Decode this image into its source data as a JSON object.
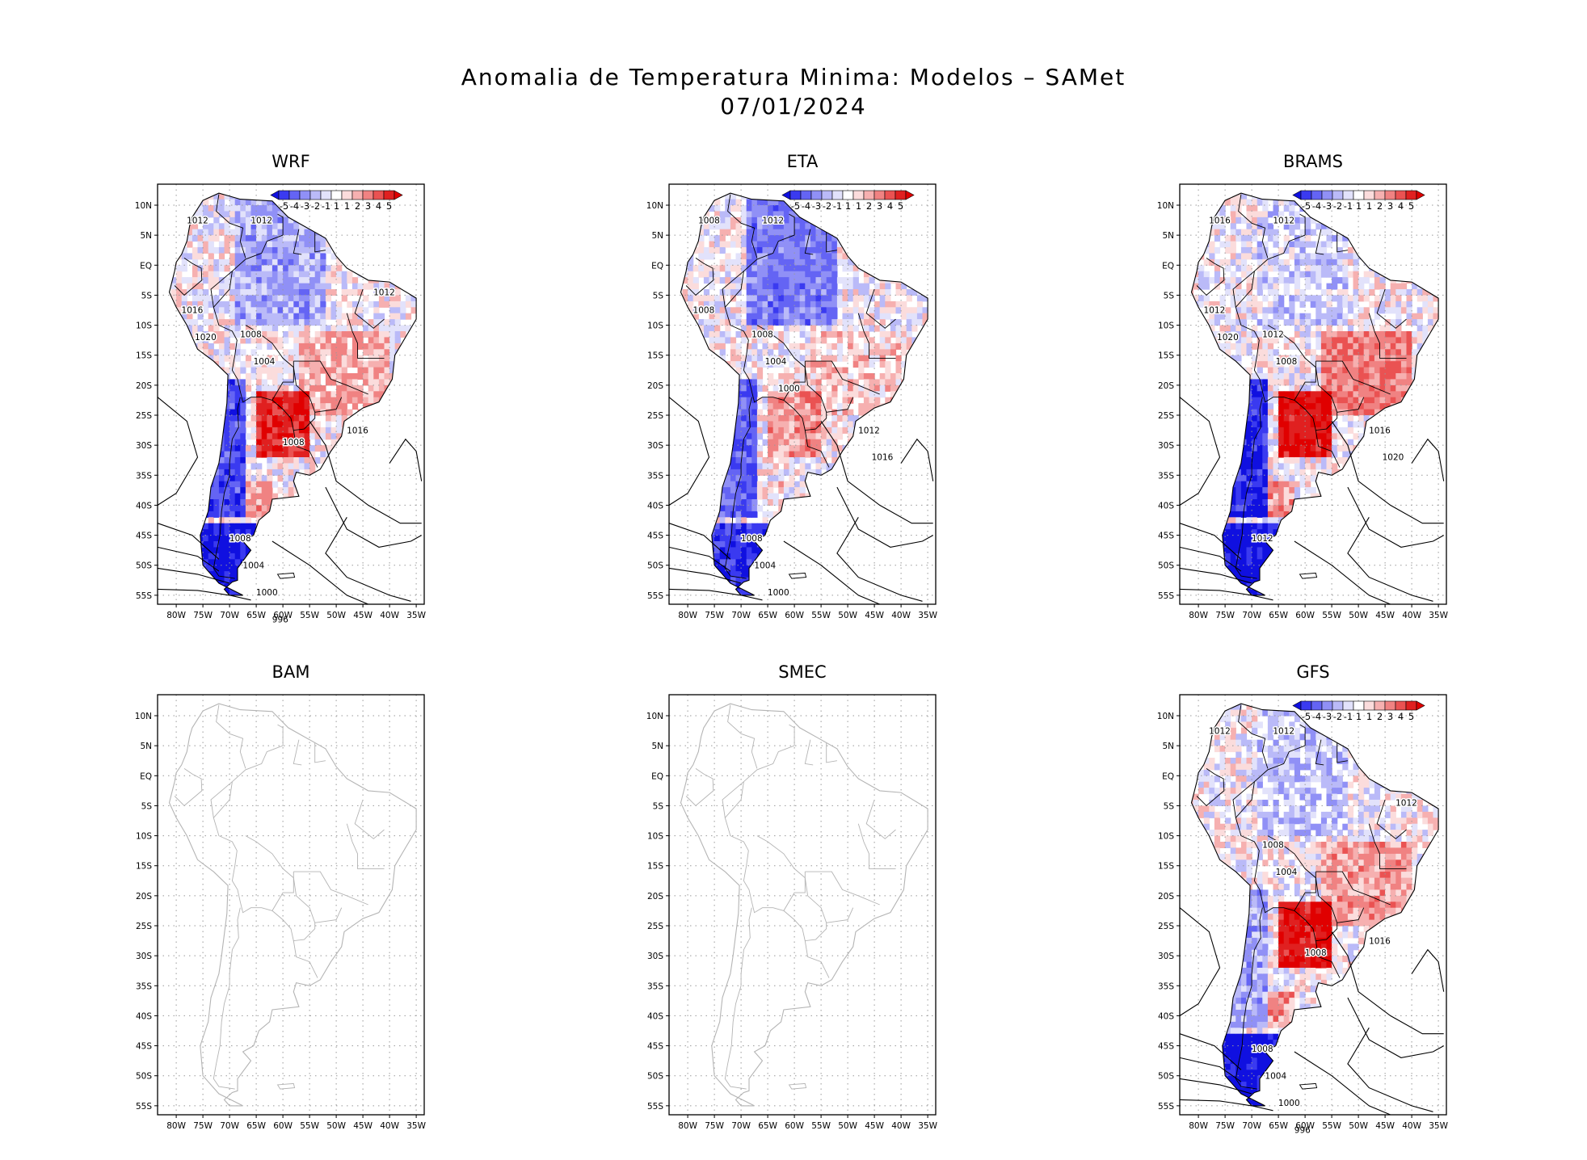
{
  "figure": {
    "title_line1": "Anomalia de Temperatura Minima: Modelos – SAMet",
    "title_line2": "07/01/2024"
  },
  "axes": {
    "lat_labels": [
      "10N",
      "5N",
      "EQ",
      "5S",
      "10S",
      "15S",
      "20S",
      "25S",
      "30S",
      "35S",
      "40S",
      "45S",
      "50S",
      "55S"
    ],
    "lon_labels": [
      "80W",
      "75W",
      "70W",
      "65W",
      "60W",
      "55W",
      "50W",
      "45W",
      "40W",
      "35W"
    ]
  },
  "colorbar": {
    "labels": [
      "-5",
      "-4",
      "-3",
      "-2",
      "-1",
      "1",
      "1",
      "2",
      "3",
      "4",
      "5"
    ],
    "colors": [
      "#1010e0",
      "#3a3af0",
      "#6464f4",
      "#9090f6",
      "#babaf8",
      "#e2e2fb",
      "#ffffff",
      "#fbdcdc",
      "#f6b0b0",
      "#f08282",
      "#ea5252",
      "#e02020",
      "#e00000"
    ]
  },
  "panels": [
    {
      "id": "wrf",
      "name": "WRF",
      "has_data": true,
      "anomaly": {
        "south_cold": 0.8,
        "andes_cold": 0.7,
        "north_cold": 0.5,
        "central_warm": 0.4,
        "paraguay_warm": 0.8
      },
      "isobars": [
        {
          "label": "1012",
          "pos": "NW"
        },
        {
          "label": "1012",
          "pos": "N"
        },
        {
          "label": "1016",
          "pos": "W"
        },
        {
          "label": "1012",
          "pos": "NE"
        },
        {
          "label": "1020",
          "pos": "W"
        },
        {
          "label": "1008",
          "pos": "C"
        },
        {
          "label": "1004",
          "pos": "C"
        },
        {
          "label": "1008",
          "pos": "SE"
        },
        {
          "label": "1016",
          "pos": "E"
        },
        {
          "label": "1008",
          "pos": "S"
        },
        {
          "label": "1004",
          "pos": "S"
        },
        {
          "label": "1000",
          "pos": "S"
        },
        {
          "label": "996",
          "pos": "S"
        }
      ]
    },
    {
      "id": "eta",
      "name": "ETA",
      "has_data": true,
      "anomaly": {
        "south_cold": 0.7,
        "andes_cold": 0.6,
        "north_cold": 0.8,
        "central_warm": 0.2,
        "paraguay_warm": 0.3
      },
      "isobars": [
        {
          "label": "1008",
          "pos": "NW"
        },
        {
          "label": "1012",
          "pos": "N"
        },
        {
          "label": "1008",
          "pos": "W"
        },
        {
          "label": "1008",
          "pos": "C"
        },
        {
          "label": "1004",
          "pos": "C"
        },
        {
          "label": "1000",
          "pos": "C"
        },
        {
          "label": "1012",
          "pos": "E"
        },
        {
          "label": "1016",
          "pos": "E"
        },
        {
          "label": "1008",
          "pos": "S"
        },
        {
          "label": "1004",
          "pos": "S"
        },
        {
          "label": "1000",
          "pos": "S"
        }
      ]
    },
    {
      "id": "brams",
      "name": "BRAMS",
      "has_data": true,
      "anomaly": {
        "south_cold": 0.9,
        "andes_cold": 0.9,
        "north_cold": 0.2,
        "central_warm": 0.7,
        "paraguay_warm": 0.9
      },
      "isobars": [
        {
          "label": "1016",
          "pos": "NW"
        },
        {
          "label": "1012",
          "pos": "N"
        },
        {
          "label": "1012",
          "pos": "W"
        },
        {
          "label": "1020",
          "pos": "W"
        },
        {
          "label": "1012",
          "pos": "C"
        },
        {
          "label": "1008",
          "pos": "C"
        },
        {
          "label": "1016",
          "pos": "E"
        },
        {
          "label": "1020",
          "pos": "E"
        },
        {
          "label": "1012",
          "pos": "S"
        }
      ]
    },
    {
      "id": "bam",
      "name": "BAM",
      "has_data": false,
      "anomaly": {},
      "isobars": []
    },
    {
      "id": "smec",
      "name": "SMEC",
      "has_data": false,
      "anomaly": {},
      "isobars": []
    },
    {
      "id": "gfs",
      "name": "GFS",
      "has_data": true,
      "anomaly": {
        "south_cold": 0.9,
        "andes_cold": 0.3,
        "north_cold": 0.3,
        "central_warm": 0.5,
        "paraguay_warm": 0.9
      },
      "isobars": [
        {
          "label": "1012",
          "pos": "NW"
        },
        {
          "label": "1012",
          "pos": "N"
        },
        {
          "label": "1012",
          "pos": "NE"
        },
        {
          "label": "1008",
          "pos": "C"
        },
        {
          "label": "1004",
          "pos": "C"
        },
        {
          "label": "1008",
          "pos": "SE"
        },
        {
          "label": "1016",
          "pos": "E"
        },
        {
          "label": "1008",
          "pos": "S"
        },
        {
          "label": "1004",
          "pos": "S"
        },
        {
          "label": "1000",
          "pos": "S"
        },
        {
          "label": "996",
          "pos": "S"
        }
      ]
    }
  ]
}
